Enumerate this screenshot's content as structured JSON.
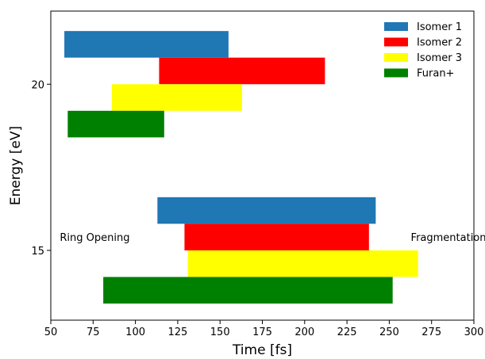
{
  "chart_data": {
    "type": "bar",
    "orientation": "horizontal-floating",
    "xlabel": "Time [fs]",
    "ylabel": "Energy [eV]",
    "xlim": [
      50,
      300
    ],
    "ylim": [
      12.9,
      22.2
    ],
    "xticks": [
      "50",
      "75",
      "100",
      "125",
      "150",
      "175",
      "200",
      "225",
      "250",
      "275",
      "300"
    ],
    "yticks": [
      "15",
      "20"
    ],
    "grid": false,
    "legend_position": "top-right",
    "series": [
      {
        "name": "Isomer 1",
        "color": "#1f77b4",
        "bars": [
          {
            "energy": 21.2,
            "start": 58,
            "end": 155
          },
          {
            "energy": 16.2,
            "start": 113,
            "end": 242
          }
        ]
      },
      {
        "name": "Isomer 2",
        "color": "#ff0000",
        "bars": [
          {
            "energy": 20.4,
            "start": 114,
            "end": 212
          },
          {
            "energy": 15.4,
            "start": 129,
            "end": 238
          }
        ]
      },
      {
        "name": "Isomer 3",
        "color": "#ffff00",
        "bars": [
          {
            "energy": 19.6,
            "start": 86,
            "end": 163
          },
          {
            "energy": 14.6,
            "start": 131,
            "end": 267
          }
        ]
      },
      {
        "name": "Furan+",
        "color": "#008000",
        "bars": [
          {
            "energy": 18.8,
            "start": 60,
            "end": 117
          },
          {
            "energy": 13.8,
            "start": 81,
            "end": 252
          }
        ]
      }
    ],
    "bar_height": 0.8,
    "annotations": [
      {
        "text": "Ring Opening",
        "x": 76,
        "y": 15.4
      },
      {
        "text": "Fragmentation",
        "x": 285,
        "y": 15.4
      }
    ]
  }
}
